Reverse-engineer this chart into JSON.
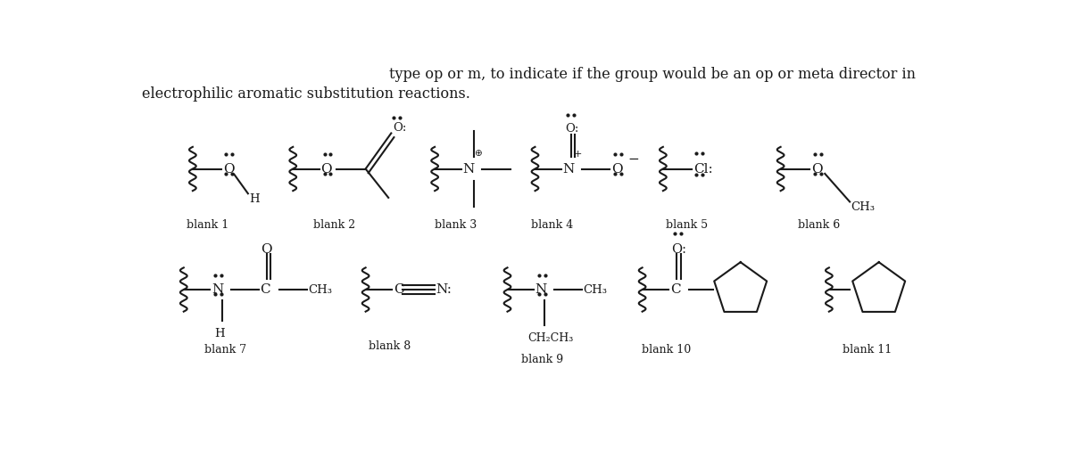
{
  "title_line1": "type op or m, to indicate if the group would be an op or meta director in",
  "title_line2": "electrophilic aromatic substitution reactions.",
  "bg_color": "#ffffff",
  "text_color": "#1a1a1a",
  "blank_labels": [
    "blank 1",
    "blank 2",
    "blank 3",
    "blank 4",
    "blank 5",
    "blank 6",
    "blank 7",
    "blank 8",
    "blank 9",
    "blank 10",
    "blank 11"
  ],
  "fig_width": 12.0,
  "fig_height": 5.14
}
